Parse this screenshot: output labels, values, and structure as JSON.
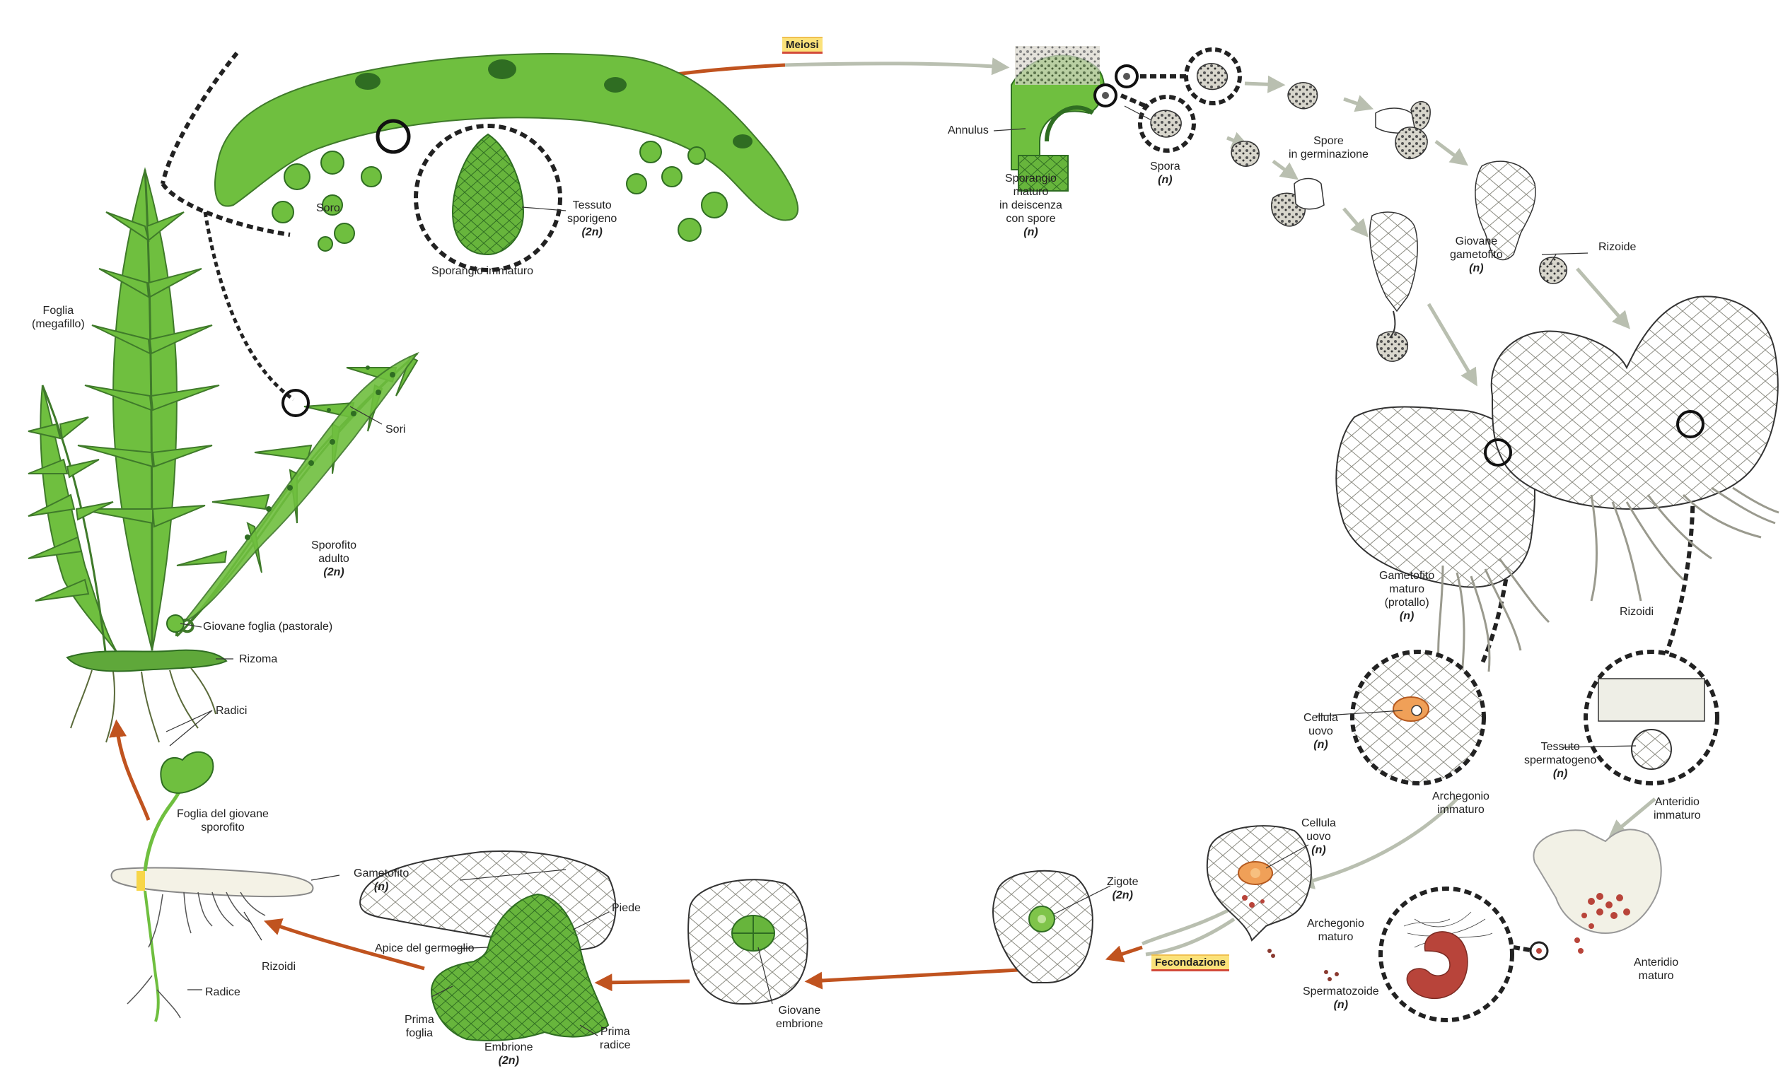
{
  "process_tags": {
    "meiosis": "Meiosi",
    "fertilization": "Fecondazione"
  },
  "labels": {
    "soro": "Soro",
    "tessuto_sporigeno": "Tessuto\nsporigeno",
    "tessuto_sporigeno_ploidy": "(2n)",
    "sporangio_immaturo": "Sporangio immaturo",
    "foglia": "Foglia\n(megafillo)",
    "sori": "Sori",
    "sporofito_adulto": "Sporofito\nadulto",
    "sporofito_adulto_ploidy": "(2n)",
    "giovane_foglia": "Giovane foglia (pastorale)",
    "rizoma": "Rizoma",
    "radici": "Radici",
    "annulus": "Annulus",
    "sporangio_maturo": "Sporangio\nmaturo\nin deiscenza\ncon spore",
    "sporangio_maturo_ploidy": "(n)",
    "spora": "Spora",
    "spora_ploidy": "(n)",
    "spore_germinazione": "Spore\nin germinazione",
    "giovane_gametofito": "Giovane\ngametofito",
    "giovane_gametofito_ploidy": "(n)",
    "rizoide": "Rizoide",
    "gametofito_maturo": "Gametofito\nmaturo\n(protallo)",
    "gametofito_maturo_ploidy": "(n)",
    "rizoidi_top": "Rizoidi",
    "cellula_uovo_1": "Cellula\nuovo",
    "cellula_uovo_1_ploidy": "(n)",
    "archegonio_immaturo": "Archegonio\nimmaturo",
    "tessuto_spermatogeno": "Tessuto\nspermatogeno",
    "tessuto_spermatogeno_ploidy": "(n)",
    "anteridio_immaturo": "Anteridio\nimmaturo",
    "cellula_uovo_2": "Cellula\nuovo",
    "cellula_uovo_2_ploidy": "(n)",
    "archegonio_maturo": "Archegonio\nmaturo",
    "spermatozoide": "Spermatozoide",
    "spermatozoide_ploidy": "(n)",
    "anteridio_maturo": "Anteridio\nmaturo",
    "zigote": "Zigote",
    "zigote_ploidy": "(2n)",
    "giovane_embrione": "Giovane\nembrione",
    "piede": "Piede",
    "apice_germoglio": "Apice del germoglio",
    "prima_foglia": "Prima\nfoglia",
    "prima_radice": "Prima\nradice",
    "embrione": "Embrione",
    "embrione_ploidy": "(2n)",
    "gametofito_bottom": "Gametofito",
    "gametofito_bottom_ploidy": "(n)",
    "foglia_giovane_sporofito": "Foglia del giovane\nsporofito",
    "rizoidi_bottom": "Rizoidi",
    "radice": "Radice"
  },
  "colors": {
    "sporophyte_arrow": "#c0531f",
    "gametophyte_arrow": "#b9bfb0",
    "sporophyte_green": "#6fbf3f",
    "dark_green": "#3f8a2a",
    "egg_orange": "#f0a058",
    "sperm_red": "#b8443a"
  }
}
